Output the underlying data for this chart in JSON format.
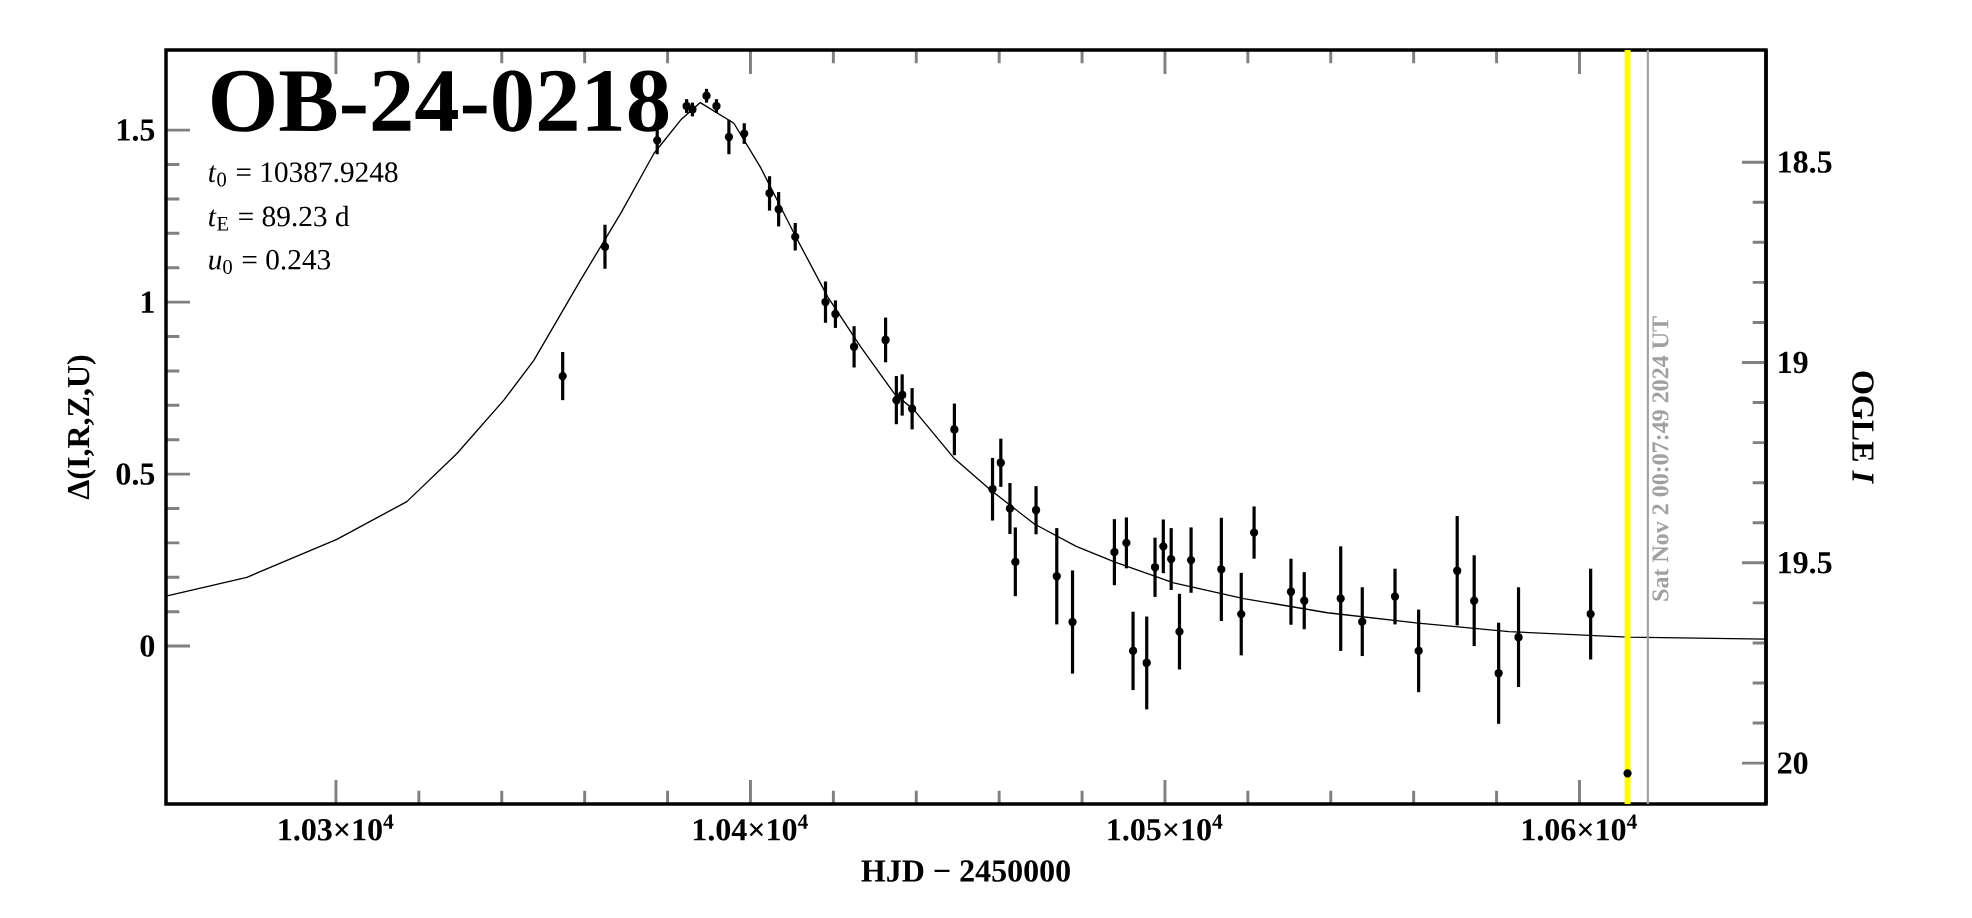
{
  "chart_data": {
    "type": "scatter",
    "title": "OB-24-0218",
    "annotations": [
      "*t*$_{0}$ = 10387.9248",
      "*t*$_{E}$ = 89.23 d",
      "*u*$_{0}$ = 0.243",
      {
        "text": "Sat Nov  2 00:07:49 2024 UT",
        "x": 10616.5,
        "y": 0.1
      }
    ],
    "xlabel": "HJD − 2450000",
    "ylabel": "Δ(I,R,Z,U)",
    "y2label": "OGLE *I*",
    "xlim": [
      10259,
      10645
    ],
    "ylim": [
      -0.459,
      1.733
    ],
    "y2lim": [
      20.102,
      18.22
    ],
    "xticks": [
      {
        "value": 10300,
        "label": "1.03×10$^{4}$"
      },
      {
        "value": 10400,
        "label": "1.04×10$^{4}$"
      },
      {
        "value": 10500,
        "label": "1.05×10$^{4}$"
      },
      {
        "value": 10600,
        "label": "1.06×10$^{4}$"
      }
    ],
    "yticks": [
      0,
      0.5,
      1,
      1.5
    ],
    "y2ticks": [
      18.5,
      19,
      19.5,
      20
    ],
    "ref_lines": [
      {
        "axis": "x",
        "value": 10611.6,
        "color": "#ffff00",
        "label": null
      },
      {
        "axis": "x",
        "value": 10616.5,
        "color": "#a0a0a0",
        "label": null
      }
    ],
    "series": [
      {
        "type": "line",
        "marker": "none",
        "color": "#000000",
        "x": [
          10259,
          10278.5,
          10300.2,
          10317.1,
          10329.2,
          10340.5,
          10347.7,
          10359,
          10368.7,
          10376.7,
          10383.2,
          10387.9,
          10396,
          10402.5,
          10410.5,
          10418.6,
          10426.6,
          10434.7,
          10439.5,
          10449.2,
          10458,
          10468.5,
          10478.6,
          10487.8,
          10502.1,
          10519,
          10539.2,
          10561.1,
          10583,
          10611.6,
          10645
        ],
        "values": [
          0.145,
          0.2,
          0.31,
          0.42,
          0.56,
          0.715,
          0.83,
          1.064,
          1.258,
          1.432,
          1.53,
          1.58,
          1.52,
          1.39,
          1.2,
          1.016,
          0.87,
          0.734,
          0.686,
          0.545,
          0.453,
          0.355,
          0.29,
          0.245,
          0.184,
          0.138,
          0.097,
          0.067,
          0.042,
          0.026,
          0.02
        ]
      },
      {
        "marker": "circle",
        "color": "#000000",
        "x": [
          10354.7,
          10364.9,
          10377.5,
          10384.6,
          10386,
          10389.4,
          10391.8,
          10394.8,
          10398.5,
          10404.6,
          10406.8,
          10410.8,
          10418.1,
          10420.5,
          10425,
          10432.6,
          10435.2,
          10436.6,
          10439,
          10449.2,
          10458.4,
          10460.4,
          10462.6,
          10463.9,
          10468.9,
          10473.9,
          10477.7,
          10487.8,
          10490.7,
          10492.3,
          10495.6,
          10497.6,
          10499.6,
          10501.5,
          10503.5,
          10506.3,
          10513.6,
          10518.4,
          10521.5,
          10530.4,
          10533.6,
          10542.4,
          10547.6,
          10555.5,
          10561.2,
          10570.5,
          10574.6,
          10580.5,
          10585.3,
          10602.7,
          10611.6
        ],
        "values": [
          0.785,
          1.161,
          1.47,
          1.57,
          1.56,
          1.6,
          1.57,
          1.48,
          1.49,
          1.316,
          1.27,
          1.19,
          1.0,
          0.965,
          0.87,
          0.89,
          0.715,
          0.73,
          0.69,
          0.63,
          0.456,
          0.533,
          0.4,
          0.245,
          0.395,
          0.203,
          0.07,
          0.273,
          0.3,
          -0.014,
          -0.049,
          0.229,
          0.29,
          0.253,
          0.042,
          0.25,
          0.223,
          0.093,
          0.33,
          0.158,
          0.132,
          0.138,
          0.071,
          0.144,
          -0.014,
          0.219,
          0.132,
          -0.079,
          0.026,
          0.093,
          -0.37
        ],
        "errors": [
          0.07,
          0.064,
          0.04,
          0.02,
          0.02,
          0.02,
          0.02,
          0.05,
          0.03,
          0.05,
          0.05,
          0.04,
          0.06,
          0.04,
          0.06,
          0.065,
          0.07,
          0.06,
          0.06,
          0.075,
          0.091,
          0.07,
          0.074,
          0.1,
          0.07,
          0.14,
          0.15,
          0.096,
          0.074,
          0.114,
          0.135,
          0.086,
          0.078,
          0.09,
          0.11,
          0.095,
          0.15,
          0.12,
          0.076,
          0.096,
          0.083,
          0.152,
          0.1,
          0.081,
          0.12,
          0.159,
          0.132,
          0.147,
          0.145,
          0.132,
          0.08
        ]
      }
    ]
  }
}
